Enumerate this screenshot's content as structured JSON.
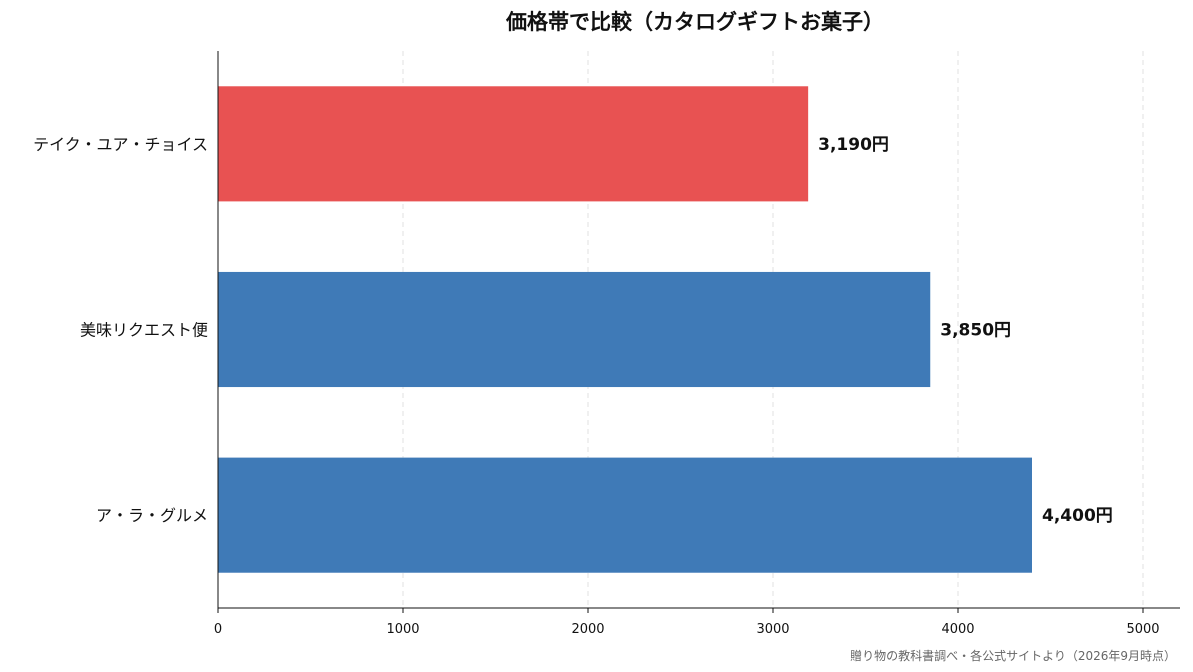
{
  "chart_data": {
    "type": "bar",
    "orientation": "horizontal",
    "title": "価格帯で比較（カタログギフトお菓子）",
    "categories": [
      "テイク・ユア・チョイス",
      "美味リクエスト便",
      "ア・ラ・グルメ"
    ],
    "values": [
      3190,
      3850,
      4400
    ],
    "value_labels": [
      "3,190円",
      "3,850円",
      "4,400円"
    ],
    "bar_colors": [
      "#e85252",
      "#3f7ab7",
      "#3f7ab7"
    ],
    "xlim": [
      0,
      5200
    ],
    "xticks": [
      0,
      1000,
      2000,
      3000,
      4000,
      5000
    ],
    "grid": "vertical dashed",
    "legend": "none",
    "source_note": "贈り物の教科書調べ・各公式サイトより（2026年9月時点）"
  }
}
